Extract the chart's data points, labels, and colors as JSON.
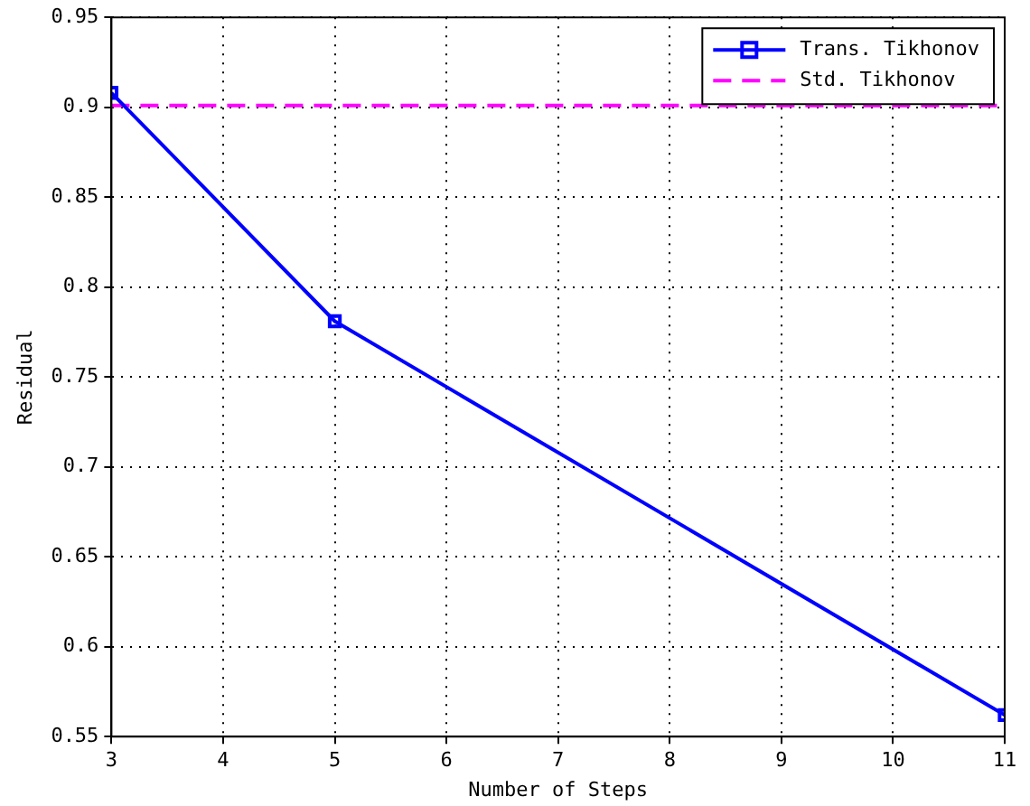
{
  "chart_data": {
    "type": "line",
    "xlabel": "Number of Steps",
    "ylabel": "Residual",
    "xlim": [
      3,
      11
    ],
    "xticks": [
      3,
      4,
      5,
      6,
      7,
      8,
      9,
      10,
      11
    ],
    "ylim": [
      0.55,
      0.95
    ],
    "yticks": [
      0.55,
      0.6,
      0.65,
      0.7,
      0.75,
      0.8,
      0.85,
      0.9,
      0.95
    ],
    "grid": true,
    "legend": "top right",
    "series": [
      {
        "name": "Trans. Tikhonov",
        "color": "#0000ff",
        "x": [
          3,
          5,
          11
        ],
        "values": [
          0.908,
          0.781,
          0.562
        ],
        "marker": "square",
        "line_style": "solid"
      },
      {
        "name": "Std. Tikhonov",
        "color": "#ff00ff",
        "x": [
          3,
          11
        ],
        "values": [
          0.901,
          0.901
        ],
        "marker": "none",
        "line_style": "dashed"
      }
    ]
  }
}
